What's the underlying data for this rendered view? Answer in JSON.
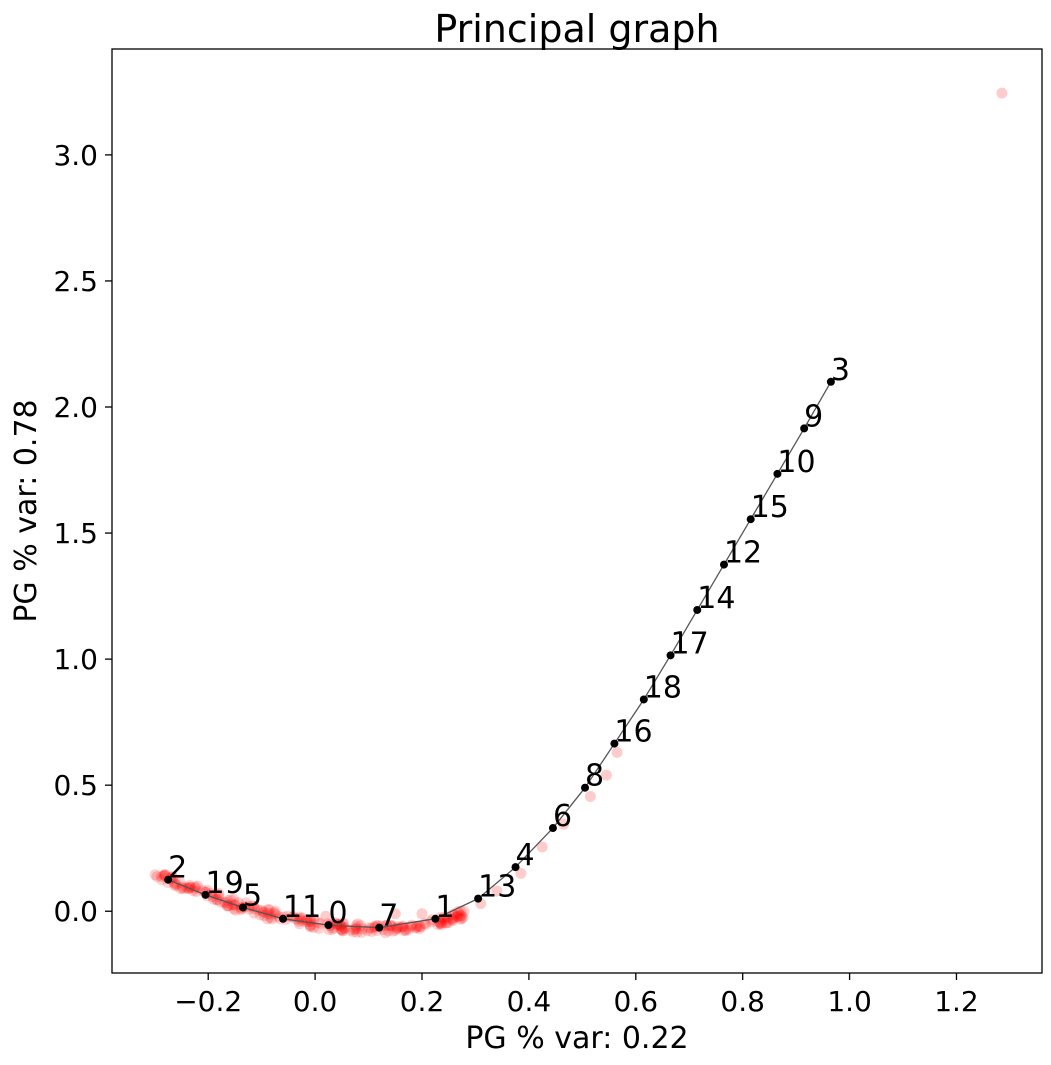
{
  "chart_data": {
    "type": "scatter",
    "title": "Principal graph",
    "xlabel": "PG % var: 0.22",
    "ylabel": "PG % var: 0.78",
    "xlim": [
      -0.38,
      1.36
    ],
    "ylim": [
      -0.245,
      3.42
    ],
    "xticks": [
      -0.2,
      0.0,
      0.2,
      0.4,
      0.6,
      0.8,
      1.0,
      1.2
    ],
    "xtick_labels": [
      "−0.2",
      "0.0",
      "0.2",
      "0.4",
      "0.6",
      "0.8",
      "1.0",
      "1.2"
    ],
    "yticks": [
      0.0,
      0.5,
      1.0,
      1.5,
      2.0,
      2.5,
      3.0
    ],
    "ytick_labels": [
      "0.0",
      "0.5",
      "1.0",
      "1.5",
      "2.0",
      "2.5",
      "3.0"
    ],
    "grid": false,
    "colors": {
      "points": "#ff0000",
      "nodes": "#000000",
      "edges": "#555555"
    },
    "nodes": [
      {
        "label": "2",
        "x": -0.275,
        "y": 0.125
      },
      {
        "label": "19",
        "x": -0.205,
        "y": 0.065
      },
      {
        "label": "5",
        "x": -0.135,
        "y": 0.015
      },
      {
        "label": "11",
        "x": -0.06,
        "y": -0.03
      },
      {
        "label": "0",
        "x": 0.025,
        "y": -0.055
      },
      {
        "label": "7",
        "x": 0.12,
        "y": -0.065
      },
      {
        "label": "1",
        "x": 0.225,
        "y": -0.03
      },
      {
        "label": "13",
        "x": 0.305,
        "y": 0.05
      },
      {
        "label": "4",
        "x": 0.375,
        "y": 0.175
      },
      {
        "label": "6",
        "x": 0.445,
        "y": 0.33
      },
      {
        "label": "8",
        "x": 0.505,
        "y": 0.49
      },
      {
        "label": "16",
        "x": 0.56,
        "y": 0.665
      },
      {
        "label": "18",
        "x": 0.615,
        "y": 0.84
      },
      {
        "label": "17",
        "x": 0.665,
        "y": 1.015
      },
      {
        "label": "14",
        "x": 0.715,
        "y": 1.195
      },
      {
        "label": "12",
        "x": 0.765,
        "y": 1.375
      },
      {
        "label": "15",
        "x": 0.815,
        "y": 1.555
      },
      {
        "label": "10",
        "x": 0.865,
        "y": 1.735
      },
      {
        "label": "9",
        "x": 0.915,
        "y": 1.915
      },
      {
        "label": "3",
        "x": 0.965,
        "y": 2.1
      }
    ],
    "edges": [
      [
        2,
        19
      ],
      [
        19,
        5
      ],
      [
        5,
        11
      ],
      [
        11,
        0
      ],
      [
        0,
        7
      ],
      [
        7,
        1
      ],
      [
        1,
        13
      ],
      [
        13,
        4
      ],
      [
        4,
        6
      ],
      [
        6,
        8
      ],
      [
        8,
        16
      ],
      [
        16,
        18
      ],
      [
        18,
        17
      ],
      [
        17,
        14
      ],
      [
        14,
        12
      ],
      [
        12,
        15
      ],
      [
        15,
        10
      ],
      [
        10,
        9
      ],
      [
        9,
        3
      ]
    ],
    "points": [
      {
        "x": 1.285,
        "y": 3.245
      },
      {
        "x": 0.565,
        "y": 0.63
      },
      {
        "x": 0.545,
        "y": 0.54
      },
      {
        "x": 0.515,
        "y": 0.455
      },
      {
        "x": 0.465,
        "y": 0.345
      },
      {
        "x": 0.425,
        "y": 0.255
      },
      {
        "x": 0.385,
        "y": 0.15
      },
      {
        "x": 0.34,
        "y": 0.08
      },
      {
        "x": 0.31,
        "y": 0.03
      },
      {
        "x": 0.2,
        "y": -0.01
      },
      {
        "x": 0.15,
        "y": -0.01
      },
      {
        "x": 0.08,
        "y": -0.05
      },
      {
        "x": 0.02,
        "y": -0.02
      },
      {
        "x": -0.03,
        "y": -0.04
      },
      {
        "x": -0.22,
        "y": 0.1
      },
      {
        "x": -0.18,
        "y": 0.07
      }
    ],
    "point_band": [
      {
        "x": -0.3,
        "y": 0.145
      },
      {
        "x": -0.25,
        "y": 0.105
      },
      {
        "x": -0.2,
        "y": 0.065
      },
      {
        "x": -0.15,
        "y": 0.025
      },
      {
        "x": -0.1,
        "y": -0.005
      },
      {
        "x": -0.05,
        "y": -0.03
      },
      {
        "x": 0.0,
        "y": -0.05
      },
      {
        "x": 0.05,
        "y": -0.062
      },
      {
        "x": 0.1,
        "y": -0.07
      },
      {
        "x": 0.15,
        "y": -0.068
      },
      {
        "x": 0.2,
        "y": -0.055
      },
      {
        "x": 0.25,
        "y": -0.03
      },
      {
        "x": 0.28,
        "y": -0.005
      }
    ]
  }
}
